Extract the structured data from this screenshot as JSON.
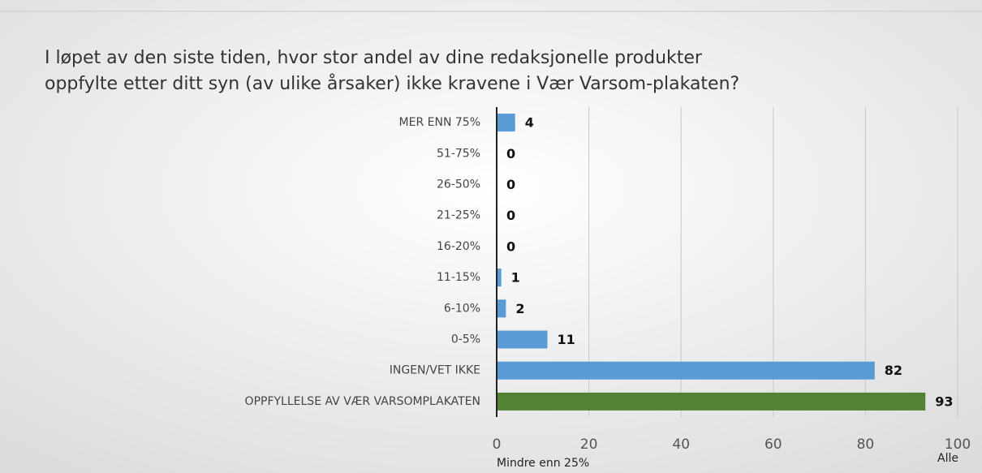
{
  "chart_data": {
    "type": "barh",
    "title": [
      "I løpet av den siste tiden, hvor stor andel av dine redaksjonelle produkter",
      "oppfylte etter ditt syn (av ulike årsaker) ikke kravene i Vær Varsom-plakaten?"
    ],
    "categories": [
      "MER ENN 75%",
      "51-75%",
      "26-50%",
      "21-25%",
      "16-20%",
      "11-15%",
      "6-10%",
      "0-5%",
      "INGEN/VET IKKE",
      "OPPFYLLELSE AV VÆR VARSOMPLAKATEN"
    ],
    "values": [
      4,
      0,
      0,
      0,
      0,
      1,
      2,
      11,
      82,
      93
    ],
    "colors": [
      "#5b9bd5",
      "#5b9bd5",
      "#5b9bd5",
      "#5b9bd5",
      "#5b9bd5",
      "#5b9bd5",
      "#5b9bd5",
      "#5b9bd5",
      "#5b9bd5",
      "#548235"
    ],
    "xlim": [
      0,
      100
    ],
    "xticks": [
      0,
      20,
      40,
      60,
      80,
      100
    ],
    "grid": true,
    "annotations": [
      "Mindre enn 25%",
      "Alle"
    ]
  }
}
